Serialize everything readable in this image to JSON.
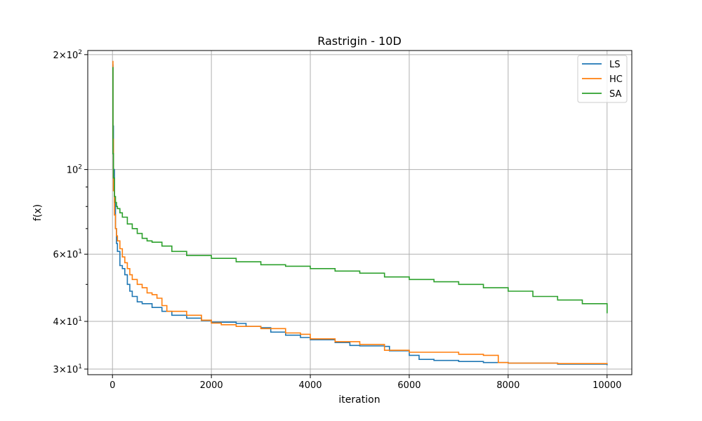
{
  "chart_data": {
    "type": "line",
    "title": "Rastrigin - 10D",
    "xlabel": "iteration",
    "ylabel": "f(x)",
    "xlim": [
      -500,
      10500
    ],
    "ylim": [
      29,
      205
    ],
    "y_scale": "log",
    "grid": true,
    "legend_position": "top-right",
    "x_ticks": [
      {
        "value": 0,
        "label": "0"
      },
      {
        "value": 2000,
        "label": "2000"
      },
      {
        "value": 4000,
        "label": "4000"
      },
      {
        "value": 6000,
        "label": "6000"
      },
      {
        "value": 8000,
        "label": "8000"
      },
      {
        "value": 10000,
        "label": "10000"
      }
    ],
    "y_ticks": [
      {
        "value": 30,
        "mantissa": "3",
        "exponent": "1"
      },
      {
        "value": 40,
        "mantissa": "4",
        "exponent": "1"
      },
      {
        "value": 60,
        "mantissa": "6",
        "exponent": "1"
      },
      {
        "value": 100,
        "mantissa": "",
        "exponent": "2"
      },
      {
        "value": 200,
        "mantissa": "2",
        "exponent": "2"
      }
    ],
    "y_minor_ticks": [
      50,
      70,
      80,
      90
    ],
    "series": [
      {
        "name": "LS",
        "color": "#1f77b4",
        "points": [
          [
            0,
            188
          ],
          [
            10,
            130
          ],
          [
            20,
            100
          ],
          [
            40,
            82
          ],
          [
            60,
            70
          ],
          [
            80,
            64
          ],
          [
            100,
            61
          ],
          [
            150,
            56
          ],
          [
            200,
            55
          ],
          [
            250,
            53
          ],
          [
            300,
            50
          ],
          [
            350,
            48
          ],
          [
            400,
            46.5
          ],
          [
            500,
            45
          ],
          [
            600,
            44.5
          ],
          [
            800,
            43.5
          ],
          [
            1000,
            42.5
          ],
          [
            1200,
            41.5
          ],
          [
            1500,
            40.8
          ],
          [
            1800,
            40.2
          ],
          [
            2000,
            39.8
          ],
          [
            2500,
            39.5
          ],
          [
            2700,
            38.8
          ],
          [
            3000,
            38.5
          ],
          [
            3200,
            37.5
          ],
          [
            3500,
            36.8
          ],
          [
            3800,
            36.3
          ],
          [
            4000,
            35.8
          ],
          [
            4500,
            35.2
          ],
          [
            4800,
            34.6
          ],
          [
            5000,
            34.5
          ],
          [
            5500,
            34.4
          ],
          [
            5600,
            33.5
          ],
          [
            6000,
            32.6
          ],
          [
            6200,
            31.8
          ],
          [
            6500,
            31.6
          ],
          [
            7000,
            31.4
          ],
          [
            7500,
            31.2
          ],
          [
            8000,
            31.1
          ],
          [
            9000,
            30.9
          ],
          [
            10000,
            30.7
          ]
        ]
      },
      {
        "name": "HC",
        "color": "#ff7f0e",
        "points": [
          [
            0,
            192
          ],
          [
            10,
            120
          ],
          [
            20,
            88
          ],
          [
            40,
            76
          ],
          [
            60,
            70
          ],
          [
            80,
            67
          ],
          [
            100,
            65
          ],
          [
            150,
            62
          ],
          [
            200,
            59
          ],
          [
            250,
            57
          ],
          [
            300,
            55
          ],
          [
            350,
            53
          ],
          [
            400,
            51.5
          ],
          [
            500,
            50
          ],
          [
            600,
            49
          ],
          [
            700,
            47.5
          ],
          [
            800,
            47
          ],
          [
            900,
            46
          ],
          [
            1000,
            44
          ],
          [
            1100,
            42.5
          ],
          [
            1500,
            41.5
          ],
          [
            1800,
            40.3
          ],
          [
            2000,
            39.6
          ],
          [
            2200,
            39.2
          ],
          [
            2500,
            38.8
          ],
          [
            3000,
            38.3
          ],
          [
            3500,
            37.3
          ],
          [
            3800,
            37
          ],
          [
            4000,
            36
          ],
          [
            4500,
            35.4
          ],
          [
            5000,
            34.8
          ],
          [
            5500,
            33.6
          ],
          [
            6000,
            33.2
          ],
          [
            7000,
            32.8
          ],
          [
            7500,
            32.6
          ],
          [
            7800,
            31.2
          ],
          [
            8000,
            31.1
          ],
          [
            9000,
            31
          ],
          [
            10000,
            30.9
          ]
        ]
      },
      {
        "name": "SA",
        "color": "#2ca02c",
        "points": [
          [
            0,
            185
          ],
          [
            10,
            110
          ],
          [
            20,
            95
          ],
          [
            40,
            85
          ],
          [
            60,
            82
          ],
          [
            80,
            80
          ],
          [
            100,
            79
          ],
          [
            150,
            77
          ],
          [
            200,
            75
          ],
          [
            300,
            72
          ],
          [
            400,
            70
          ],
          [
            500,
            68
          ],
          [
            600,
            66
          ],
          [
            700,
            65
          ],
          [
            800,
            64.5
          ],
          [
            1000,
            63
          ],
          [
            1200,
            61
          ],
          [
            1500,
            59.5
          ],
          [
            2000,
            58.5
          ],
          [
            2500,
            57.3
          ],
          [
            3000,
            56.3
          ],
          [
            3500,
            55.8
          ],
          [
            4000,
            55
          ],
          [
            4500,
            54.2
          ],
          [
            5000,
            53.5
          ],
          [
            5500,
            52.3
          ],
          [
            6000,
            51.5
          ],
          [
            6500,
            50.8
          ],
          [
            7000,
            50
          ],
          [
            7500,
            49
          ],
          [
            8000,
            48
          ],
          [
            8500,
            46.5
          ],
          [
            9000,
            45.5
          ],
          [
            9500,
            44.5
          ],
          [
            10000,
            42
          ]
        ]
      }
    ]
  }
}
